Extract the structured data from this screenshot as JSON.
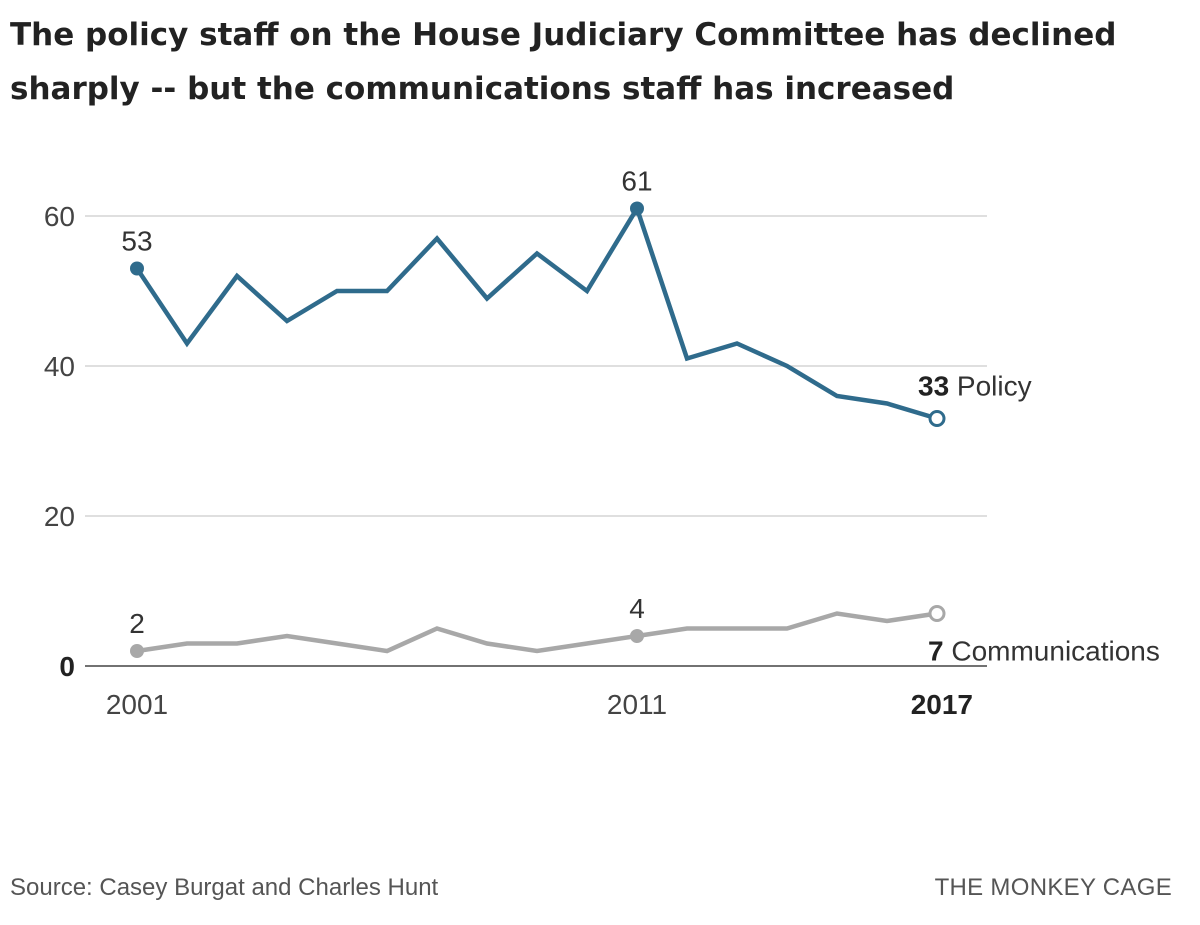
{
  "title": "The policy staff on the House Judiciary Committee has declined sharply -- but the communications staff has increased",
  "footer": {
    "source": "Source: Casey Burgat and Charles Hunt",
    "brand": "THE MONKEY CAGE"
  },
  "chart_data": {
    "type": "line",
    "title": "The policy staff on the House Judiciary Committee has declined sharply -- but the communications staff has increased",
    "xlabel": "",
    "ylabel": "",
    "x": [
      2001,
      2002,
      2003,
      2004,
      2005,
      2006,
      2007,
      2008,
      2009,
      2010,
      2011,
      2012,
      2013,
      2014,
      2015,
      2016,
      2017
    ],
    "xlim": [
      2001,
      2017
    ],
    "ylim": [
      0,
      65
    ],
    "yticks": [
      {
        "value": 0,
        "label": "0",
        "bold": true
      },
      {
        "value": 20,
        "label": "20",
        "bold": false
      },
      {
        "value": 40,
        "label": "40",
        "bold": false
      },
      {
        "value": 60,
        "label": "60",
        "bold": false
      }
    ],
    "xticks": [
      {
        "value": 2001,
        "label": "2001",
        "bold": false
      },
      {
        "value": 2011,
        "label": "2011",
        "bold": false
      },
      {
        "value": 2017,
        "label": "2017",
        "bold": true
      }
    ],
    "grid": true,
    "series": [
      {
        "name": "Policy",
        "color": "#2f6b8c",
        "values": [
          53,
          43,
          52,
          46,
          50,
          50,
          57,
          49,
          55,
          50,
          61,
          41,
          43,
          40,
          36,
          35,
          33
        ],
        "annotations": [
          {
            "x": 2001,
            "value": "53"
          },
          {
            "x": 2011,
            "value": "61"
          }
        ],
        "end_label": {
          "value": "33",
          "name": "Policy"
        }
      },
      {
        "name": "Communications",
        "color": "#a8a8a8",
        "values": [
          2,
          3,
          3,
          4,
          3,
          2,
          5,
          3,
          2,
          3,
          4,
          5,
          5,
          5,
          7,
          6,
          7
        ],
        "annotations": [
          {
            "x": 2001,
            "value": "2"
          },
          {
            "x": 2011,
            "value": "4"
          }
        ],
        "end_label": {
          "value": "7",
          "name": "Communications"
        }
      }
    ]
  }
}
